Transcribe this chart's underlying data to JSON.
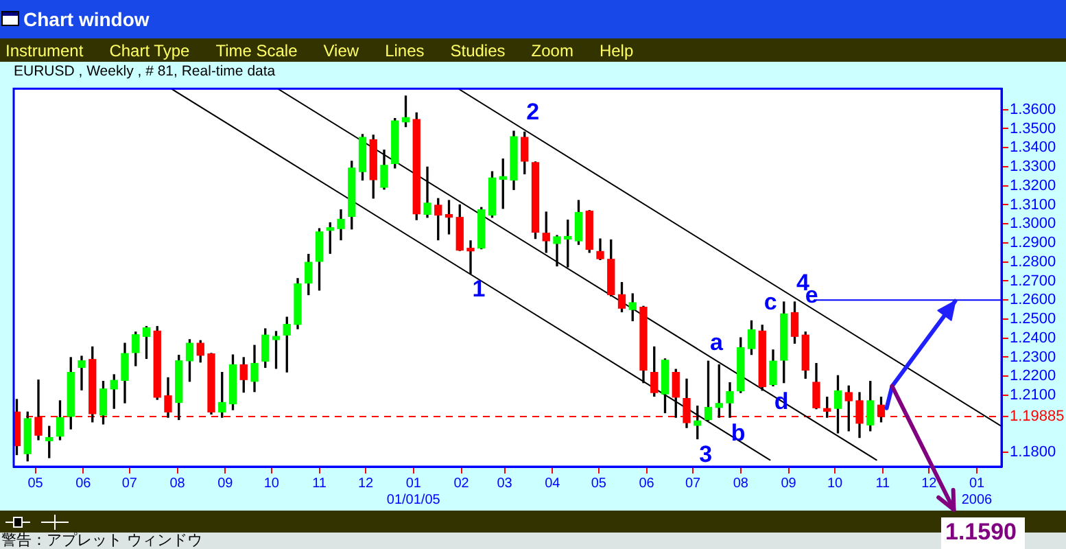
{
  "chart_data": {
    "type": "candlestick",
    "title": "EURUSD , Weekly , # 81, Real-time data",
    "x": [
      "2004-04-19",
      "2004-04-26",
      "2004-05-03",
      "2004-05-10",
      "2004-05-17",
      "2004-05-24",
      "2004-05-31",
      "2004-06-07",
      "2004-06-14",
      "2004-06-21",
      "2004-06-28",
      "2004-07-05",
      "2004-07-12",
      "2004-07-19",
      "2004-07-26",
      "2004-08-02",
      "2004-08-09",
      "2004-08-16",
      "2004-08-23",
      "2004-08-30",
      "2004-09-06",
      "2004-09-13",
      "2004-09-20",
      "2004-09-27",
      "2004-10-04",
      "2004-10-11",
      "2004-10-18",
      "2004-10-25",
      "2004-11-01",
      "2004-11-08",
      "2004-11-15",
      "2004-11-22",
      "2004-11-29",
      "2004-12-06",
      "2004-12-13",
      "2004-12-20",
      "2004-12-27",
      "2005-01-03",
      "2005-01-10",
      "2005-01-17",
      "2005-01-24",
      "2005-01-31",
      "2005-02-07",
      "2005-02-14",
      "2005-02-21",
      "2005-02-28",
      "2005-03-07",
      "2005-03-14",
      "2005-03-21",
      "2005-03-28",
      "2005-04-04",
      "2005-04-11",
      "2005-04-18",
      "2005-04-25",
      "2005-05-02",
      "2005-05-09",
      "2005-05-16",
      "2005-05-23",
      "2005-05-30",
      "2005-06-06",
      "2005-06-13",
      "2005-06-20",
      "2005-06-27",
      "2005-07-04",
      "2005-07-11",
      "2005-07-18",
      "2005-07-25",
      "2005-08-01",
      "2005-08-08",
      "2005-08-15",
      "2005-08-22",
      "2005-08-29",
      "2005-09-05",
      "2005-09-12",
      "2005-09-19",
      "2005-09-26",
      "2005-10-03",
      "2005-10-10",
      "2005-10-17",
      "2005-10-24",
      "2005-10-31"
    ],
    "ohlc": [
      [
        1.2012,
        1.2078,
        1.1788,
        1.1835
      ],
      [
        1.1793,
        1.2012,
        1.1755,
        1.1977
      ],
      [
        1.1984,
        1.218,
        1.1866,
        1.189
      ],
      [
        1.1861,
        1.1937,
        1.1772,
        1.1878
      ],
      [
        1.1885,
        1.2071,
        1.1866,
        1.1982
      ],
      [
        1.1989,
        1.2298,
        1.1923,
        1.222
      ],
      [
        1.2246,
        1.2305,
        1.2128,
        1.2281
      ],
      [
        1.2288,
        1.2354,
        1.196,
        1.2003
      ],
      [
        1.1996,
        1.2173,
        1.1949,
        1.2133
      ],
      [
        1.2133,
        1.2208,
        1.2031,
        1.2178
      ],
      [
        1.2178,
        1.2373,
        1.206,
        1.2319
      ],
      [
        1.2324,
        1.2432,
        1.2255,
        1.2418
      ],
      [
        1.2409,
        1.2461,
        1.2293,
        1.2454
      ],
      [
        1.2437,
        1.2461,
        1.2078,
        1.209
      ],
      [
        1.2097,
        1.2192,
        1.1984,
        1.2012
      ],
      [
        1.2062,
        1.231,
        1.1972,
        1.2281
      ],
      [
        1.2281,
        1.2392,
        1.2173,
        1.2373
      ],
      [
        1.2373,
        1.2387,
        1.2274,
        1.231
      ],
      [
        1.2317,
        1.232,
        1.2001,
        1.2012
      ],
      [
        1.2012,
        1.222,
        1.1984,
        1.2062
      ],
      [
        1.2055,
        1.2312,
        1.2024,
        1.226
      ],
      [
        1.226,
        1.2298,
        1.2116,
        1.2182
      ],
      [
        1.2173,
        1.2362,
        1.2119,
        1.2267
      ],
      [
        1.2279,
        1.2449,
        1.2246,
        1.2416
      ],
      [
        1.2392,
        1.2435,
        1.2241,
        1.2409
      ],
      [
        1.2416,
        1.251,
        1.2222,
        1.2472
      ],
      [
        1.2472,
        1.2713,
        1.2449,
        1.2685
      ],
      [
        1.2689,
        1.284,
        1.2628,
        1.2798
      ],
      [
        1.2803,
        1.2975,
        1.2652,
        1.2958
      ],
      [
        1.2966,
        1.3006,
        1.2845,
        1.298
      ],
      [
        1.2975,
        1.3074,
        1.2916,
        1.3024
      ],
      [
        1.3039,
        1.3329,
        1.2973,
        1.3293
      ],
      [
        1.3274,
        1.347,
        1.323,
        1.3454
      ],
      [
        1.3442,
        1.3466,
        1.3135,
        1.3232
      ],
      [
        1.3192,
        1.3388,
        1.3182,
        1.3307
      ],
      [
        1.3317,
        1.3553,
        1.3293,
        1.3541
      ],
      [
        1.3536,
        1.3671,
        1.351,
        1.3558
      ],
      [
        1.3548,
        1.3583,
        1.3022,
        1.3053
      ],
      [
        1.305,
        1.3298,
        1.3034,
        1.3109
      ],
      [
        1.3098,
        1.3133,
        1.2916,
        1.3046
      ],
      [
        1.3049,
        1.3123,
        1.2947,
        1.3035
      ],
      [
        1.3034,
        1.31,
        1.286,
        1.2862
      ],
      [
        1.2872,
        1.2911,
        1.2739,
        1.2858
      ],
      [
        1.2873,
        1.3086,
        1.2869,
        1.3074
      ],
      [
        1.3046,
        1.3274,
        1.3034,
        1.3241
      ],
      [
        1.3234,
        1.3341,
        1.3081,
        1.3248
      ],
      [
        1.323,
        1.3487,
        1.318,
        1.3458
      ],
      [
        1.3454,
        1.3482,
        1.3263,
        1.3329
      ],
      [
        1.3322,
        1.3325,
        1.2923,
        1.2956
      ],
      [
        1.2951,
        1.3062,
        1.285,
        1.2911
      ],
      [
        1.2897,
        1.2939,
        1.2779,
        1.2932
      ],
      [
        1.292,
        1.302,
        1.2774,
        1.2934
      ],
      [
        1.2911,
        1.3123,
        1.2892,
        1.306
      ],
      [
        1.3067,
        1.307,
        1.285,
        1.2866
      ],
      [
        1.2855,
        1.2921,
        1.2812,
        1.2817
      ],
      [
        1.2814,
        1.2916,
        1.2621,
        1.2628
      ],
      [
        1.2628,
        1.2692,
        1.2538,
        1.2557
      ],
      [
        1.255,
        1.2633,
        1.2491,
        1.2586
      ],
      [
        1.2562,
        1.2567,
        1.2166,
        1.2232
      ],
      [
        1.222,
        1.2354,
        1.2095,
        1.2114
      ],
      [
        1.2107,
        1.2291,
        1.2008,
        1.2284
      ],
      [
        1.222,
        1.2236,
        1.1984,
        1.209
      ],
      [
        1.2083,
        1.2185,
        1.193,
        1.1956
      ],
      [
        1.1942,
        1.2043,
        1.1871,
        1.1965
      ],
      [
        1.1972,
        1.2279,
        1.1968,
        1.2036
      ],
      [
        1.2036,
        1.226,
        1.1984,
        1.2057
      ],
      [
        1.206,
        1.2166,
        1.1984,
        1.2119
      ],
      [
        1.2123,
        1.2402,
        1.2114,
        1.235
      ],
      [
        1.2345,
        1.2491,
        1.2314,
        1.2444
      ],
      [
        1.2437,
        1.2468,
        1.2126,
        1.2145
      ],
      [
        1.2156,
        1.2338,
        1.2149,
        1.2279
      ],
      [
        1.2284,
        1.259,
        1.2166,
        1.2527
      ],
      [
        1.2534,
        1.259,
        1.2373,
        1.2409
      ],
      [
        1.2416,
        1.2432,
        1.2189,
        1.2232
      ],
      [
        1.2168,
        1.2267,
        1.2029,
        1.2034
      ],
      [
        1.203,
        1.209,
        1.1984,
        1.2016
      ],
      [
        1.2031,
        1.2203,
        1.1902,
        1.2123
      ],
      [
        1.2114,
        1.2149,
        1.1913,
        1.2071
      ],
      [
        1.2071,
        1.2114,
        1.1878,
        1.1953
      ],
      [
        1.1944,
        1.2173,
        1.1913,
        1.2071
      ],
      [
        1.2048,
        1.209,
        1.196,
        1.1989
      ]
    ],
    "colors": [
      "#ff0000",
      "#00ff00",
      "#ff0000",
      "#00ff00",
      "#00ff00",
      "#00ff00",
      "#00ff00",
      "#ff0000",
      "#00ff00",
      "#00ff00",
      "#00ff00",
      "#00ff00",
      "#00ff00",
      "#ff0000",
      "#ff0000",
      "#00ff00",
      "#00ff00",
      "#ff0000",
      "#ff0000",
      "#00ff00",
      "#00ff00",
      "#ff0000",
      "#00ff00",
      "#00ff00",
      "#00ff00",
      "#00ff00",
      "#00ff00",
      "#00ff00",
      "#00ff00",
      "#00ff00",
      "#00ff00",
      "#00ff00",
      "#00ff00",
      "#ff0000",
      "#00ff00",
      "#00ff00",
      "#00ff00",
      "#ff0000",
      "#00ff00",
      "#ff0000",
      "#ff0000",
      "#ff0000",
      "#ff0000",
      "#00ff00",
      "#00ff00",
      "#00ff00",
      "#00ff00",
      "#ff0000",
      "#ff0000",
      "#ff0000",
      "#00ff00",
      "#00ff00",
      "#00ff00",
      "#ff0000",
      "#ff0000",
      "#ff0000",
      "#ff0000",
      "#00ff00",
      "#ff0000",
      "#ff0000",
      "#00ff00",
      "#ff0000",
      "#ff0000",
      "#00ff00",
      "#00ff00",
      "#00ff00",
      "#00ff00",
      "#00ff00",
      "#00ff00",
      "#ff0000",
      "#00ff00",
      "#00ff00",
      "#ff0000",
      "#ff0000",
      "#ff0000",
      "#ff0000",
      "#00ff00",
      "#ff0000",
      "#ff0000",
      "#00ff00",
      "#ff0000"
    ],
    "series": [
      {
        "type": "line",
        "color": "#000000",
        "x": [
          "2004-07-28",
          "2005-08-20"
        ],
        "values": [
          1.371,
          1.176
        ]
      },
      {
        "type": "line",
        "color": "#000000",
        "x": [
          "2004-10-05",
          "2005-10-28"
        ],
        "values": [
          1.371,
          1.176
        ]
      },
      {
        "type": "line",
        "color": "#000000",
        "x": [
          "2005-01-30",
          "2006-01-17"
        ],
        "values": [
          1.371,
          1.1937
        ]
      },
      {
        "type": "line",
        "color": "#0000ff",
        "x": [
          "2005-09-19",
          "2006-01-17"
        ],
        "values": [
          1.26,
          1.26
        ]
      }
    ],
    "marker": "none",
    "xlim": [
      "2004-04-17",
      "2006-01-17"
    ],
    "xticks": [
      {
        "value": "2004-05-01",
        "label": "05"
      },
      {
        "value": "2004-06-01",
        "label": "06"
      },
      {
        "value": "2004-07-01",
        "label": "07"
      },
      {
        "value": "2004-08-01",
        "label": "08"
      },
      {
        "value": "2004-09-01",
        "label": "09"
      },
      {
        "value": "2004-10-01",
        "label": "10"
      },
      {
        "value": "2004-11-01",
        "label": "11"
      },
      {
        "value": "2004-12-01",
        "label": "12"
      },
      {
        "value": "2005-01-01",
        "label": "01\n01/01/05"
      },
      {
        "value": "2005-02-01",
        "label": "02"
      },
      {
        "value": "2005-03-01",
        "label": "03"
      },
      {
        "value": "2005-04-01",
        "label": "04"
      },
      {
        "value": "2005-05-01",
        "label": "05"
      },
      {
        "value": "2005-06-01",
        "label": "06"
      },
      {
        "value": "2005-07-01",
        "label": "07"
      },
      {
        "value": "2005-08-01",
        "label": "08"
      },
      {
        "value": "2005-09-01",
        "label": "09"
      },
      {
        "value": "2005-10-01",
        "label": "10"
      },
      {
        "value": "2005-11-01",
        "label": "11"
      },
      {
        "value": "2005-12-01",
        "label": "12"
      },
      {
        "value": "2006-01-01",
        "label": "01\n2006"
      }
    ],
    "ylim": [
      1.1725,
      1.371
    ],
    "yticks": [
      {
        "value": 1.18,
        "label": "1.1800"
      },
      {
        "value": 1.21,
        "label": "1.2100"
      },
      {
        "value": 1.22,
        "label": "1.2200"
      },
      {
        "value": 1.23,
        "label": "1.2300"
      },
      {
        "value": 1.24,
        "label": "1.2400"
      },
      {
        "value": 1.25,
        "label": "1.2500"
      },
      {
        "value": 1.26,
        "label": "1.2600"
      },
      {
        "value": 1.27,
        "label": "1.2700"
      },
      {
        "value": 1.28,
        "label": "1.2800"
      },
      {
        "value": 1.29,
        "label": "1.2900"
      },
      {
        "value": 1.3,
        "label": "1.3000"
      },
      {
        "value": 1.31,
        "label": "1.3100"
      },
      {
        "value": 1.32,
        "label": "1.3200"
      },
      {
        "value": 1.33,
        "label": "1.3300"
      },
      {
        "value": 1.34,
        "label": "1.3400"
      },
      {
        "value": 1.35,
        "label": "1.3500"
      },
      {
        "value": 1.36,
        "label": "1.3600"
      }
    ],
    "ref_lines": [
      {
        "axis": "y",
        "value": 1.19885,
        "label": "1.19885",
        "color": "#ff0000",
        "line_style": "dashed"
      }
    ],
    "annotations": [
      "Chart window",
      "Instrument",
      "Chart Type",
      "Time Scale",
      "View",
      "Lines",
      "Studies",
      "Zoom",
      "Help",
      {
        "text": "1",
        "x": "2005-02-07",
        "y": 1.2739
      },
      {
        "text": "2",
        "x": "2005-03-14",
        "y": 1.3487
      },
      {
        "text": "3",
        "x": "2005-07-04",
        "y": 1.1871
      },
      {
        "text": "4",
        "x": "2005-09-05",
        "y": 1.259
      },
      {
        "text": "a",
        "x": "2005-07-11",
        "y": 1.2279
      },
      {
        "text": "b",
        "x": "2005-07-25",
        "y": 1.1984
      },
      {
        "text": "c",
        "x": "2005-08-15",
        "y": 1.2491
      },
      {
        "text": "d",
        "x": "2005-08-22",
        "y": 1.2149
      },
      {
        "text": "e",
        "x": "2005-09-16",
        "y": 1.2621
      },
      "1.1590",
      "警告：アプレット ウィンドウ"
    ]
  }
}
